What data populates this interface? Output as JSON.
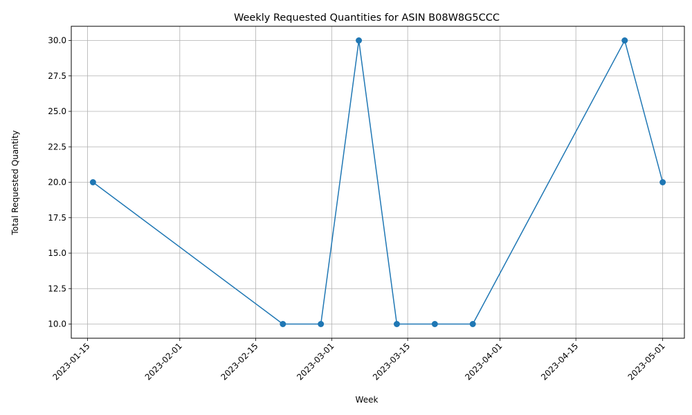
{
  "chart_data": {
    "type": "line",
    "title": "Weekly Requested Quantities for ASIN B08W8G5CCC",
    "xlabel": "Week",
    "ylabel": "Total Requested Quantity",
    "x_type": "date",
    "xlim": [
      "2023-01-12",
      "2023-05-05"
    ],
    "ylim": [
      9,
      31
    ],
    "x_ticks": [
      "2023-01-15",
      "2023-02-01",
      "2023-02-15",
      "2023-03-01",
      "2023-03-15",
      "2023-04-01",
      "2023-04-15",
      "2023-05-01"
    ],
    "y_ticks": [
      10.0,
      12.5,
      15.0,
      17.5,
      20.0,
      22.5,
      25.0,
      27.5,
      30.0
    ],
    "y_tick_labels": [
      "10.0",
      "12.5",
      "15.0",
      "17.5",
      "20.0",
      "22.5",
      "25.0",
      "27.5",
      "30.0"
    ],
    "grid": true,
    "marker": "circle",
    "series": [
      {
        "name": "",
        "color": "#1f77b4",
        "x": [
          "2023-01-16",
          "2023-02-20",
          "2023-02-27",
          "2023-03-06",
          "2023-03-13",
          "2023-03-20",
          "2023-03-27",
          "2023-04-24",
          "2023-05-01"
        ],
        "y": [
          20,
          10,
          10,
          30,
          10,
          10,
          10,
          30,
          20
        ]
      }
    ]
  }
}
